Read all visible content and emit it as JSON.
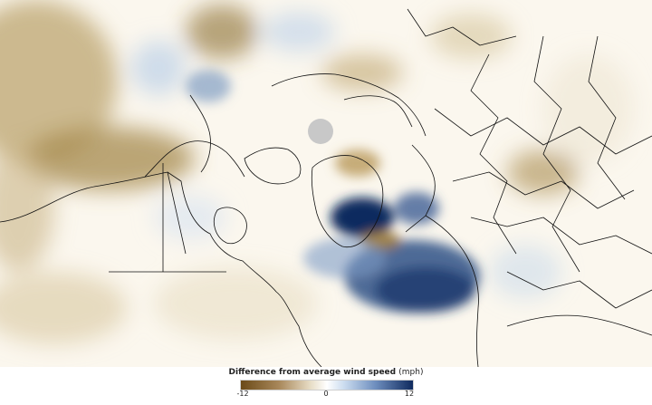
{
  "legend": {
    "title": "Difference from average wind speed",
    "unit": "(mph)",
    "ticks": {
      "min": "-12",
      "mid": "0",
      "max": "12"
    },
    "colors": {
      "negative": "#6b4a18",
      "neutral": "#ffffff",
      "positive": "#0f2a5e"
    }
  },
  "map": {
    "projection": "polar stereographic (north pole)",
    "pole_marker_color": "#c8c8c8"
  }
}
